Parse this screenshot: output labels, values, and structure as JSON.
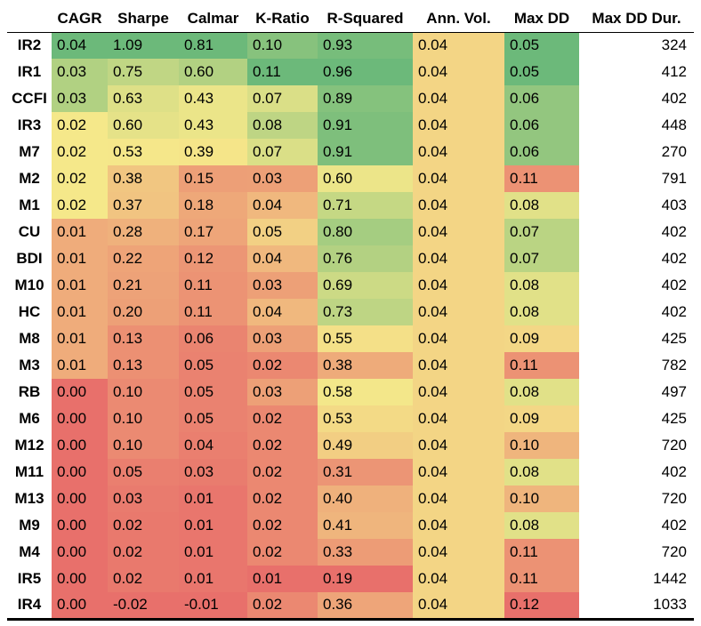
{
  "chart_data": {
    "type": "heatmap",
    "columns": [
      "CAGR",
      "Sharpe",
      "Calmar",
      "K-Ratio",
      "R-Squared",
      "Ann. Vol.",
      "Max DD",
      "Max DD Dur."
    ],
    "rows": [
      {
        "label": "IR2",
        "values": [
          "0.04",
          "1.09",
          "0.81",
          "0.10",
          "0.93",
          "0.04",
          "0.05",
          "324"
        ]
      },
      {
        "label": "IR1",
        "values": [
          "0.03",
          "0.75",
          "0.60",
          "0.11",
          "0.96",
          "0.04",
          "0.05",
          "412"
        ]
      },
      {
        "label": "CCFI",
        "values": [
          "0.03",
          "0.63",
          "0.43",
          "0.07",
          "0.89",
          "0.04",
          "0.06",
          "402"
        ]
      },
      {
        "label": "IR3",
        "values": [
          "0.02",
          "0.60",
          "0.43",
          "0.08",
          "0.91",
          "0.04",
          "0.06",
          "448"
        ]
      },
      {
        "label": "M7",
        "values": [
          "0.02",
          "0.53",
          "0.39",
          "0.07",
          "0.91",
          "0.04",
          "0.06",
          "270"
        ]
      },
      {
        "label": "M2",
        "values": [
          "0.02",
          "0.38",
          "0.15",
          "0.03",
          "0.60",
          "0.04",
          "0.11",
          "791"
        ]
      },
      {
        "label": "M1",
        "values": [
          "0.02",
          "0.37",
          "0.18",
          "0.04",
          "0.71",
          "0.04",
          "0.08",
          "403"
        ]
      },
      {
        "label": "CU",
        "values": [
          "0.01",
          "0.28",
          "0.17",
          "0.05",
          "0.80",
          "0.04",
          "0.07",
          "402"
        ]
      },
      {
        "label": "BDI",
        "values": [
          "0.01",
          "0.22",
          "0.12",
          "0.04",
          "0.76",
          "0.04",
          "0.07",
          "402"
        ]
      },
      {
        "label": "M10",
        "values": [
          "0.01",
          "0.21",
          "0.11",
          "0.03",
          "0.69",
          "0.04",
          "0.08",
          "402"
        ]
      },
      {
        "label": "HC",
        "values": [
          "0.01",
          "0.20",
          "0.11",
          "0.04",
          "0.73",
          "0.04",
          "0.08",
          "402"
        ]
      },
      {
        "label": "M8",
        "values": [
          "0.01",
          "0.13",
          "0.06",
          "0.03",
          "0.55",
          "0.04",
          "0.09",
          "425"
        ]
      },
      {
        "label": "M3",
        "values": [
          "0.01",
          "0.13",
          "0.05",
          "0.02",
          "0.38",
          "0.04",
          "0.11",
          "782"
        ]
      },
      {
        "label": "RB",
        "values": [
          "0.00",
          "0.10",
          "0.05",
          "0.03",
          "0.58",
          "0.04",
          "0.08",
          "497"
        ]
      },
      {
        "label": "M6",
        "values": [
          "0.00",
          "0.10",
          "0.05",
          "0.02",
          "0.53",
          "0.04",
          "0.09",
          "425"
        ]
      },
      {
        "label": "M12",
        "values": [
          "0.00",
          "0.10",
          "0.04",
          "0.02",
          "0.49",
          "0.04",
          "0.10",
          "720"
        ]
      },
      {
        "label": "M11",
        "values": [
          "0.00",
          "0.05",
          "0.03",
          "0.02",
          "0.31",
          "0.04",
          "0.08",
          "402"
        ]
      },
      {
        "label": "M13",
        "values": [
          "0.00",
          "0.03",
          "0.01",
          "0.02",
          "0.40",
          "0.04",
          "0.10",
          "720"
        ]
      },
      {
        "label": "M9",
        "values": [
          "0.00",
          "0.02",
          "0.01",
          "0.02",
          "0.41",
          "0.04",
          "0.08",
          "402"
        ]
      },
      {
        "label": "M4",
        "values": [
          "0.00",
          "0.02",
          "0.01",
          "0.02",
          "0.33",
          "0.04",
          "0.11",
          "720"
        ]
      },
      {
        "label": "IR5",
        "values": [
          "0.00",
          "0.02",
          "0.01",
          "0.01",
          "0.19",
          "0.04",
          "0.11",
          "1442"
        ]
      },
      {
        "label": "IR4",
        "values": [
          "0.00",
          "-0.02",
          "-0.01",
          "0.02",
          "0.36",
          "0.04",
          "0.12",
          "1033"
        ]
      }
    ],
    "color_scale": {
      "low": "#e8706b",
      "mid": "#f5e88a",
      "high": "#6cb97a"
    },
    "colored_columns": [
      true,
      true,
      true,
      true,
      true,
      true,
      true,
      false
    ],
    "higher_is_better": [
      true,
      true,
      true,
      true,
      true,
      true,
      false,
      true
    ]
  }
}
